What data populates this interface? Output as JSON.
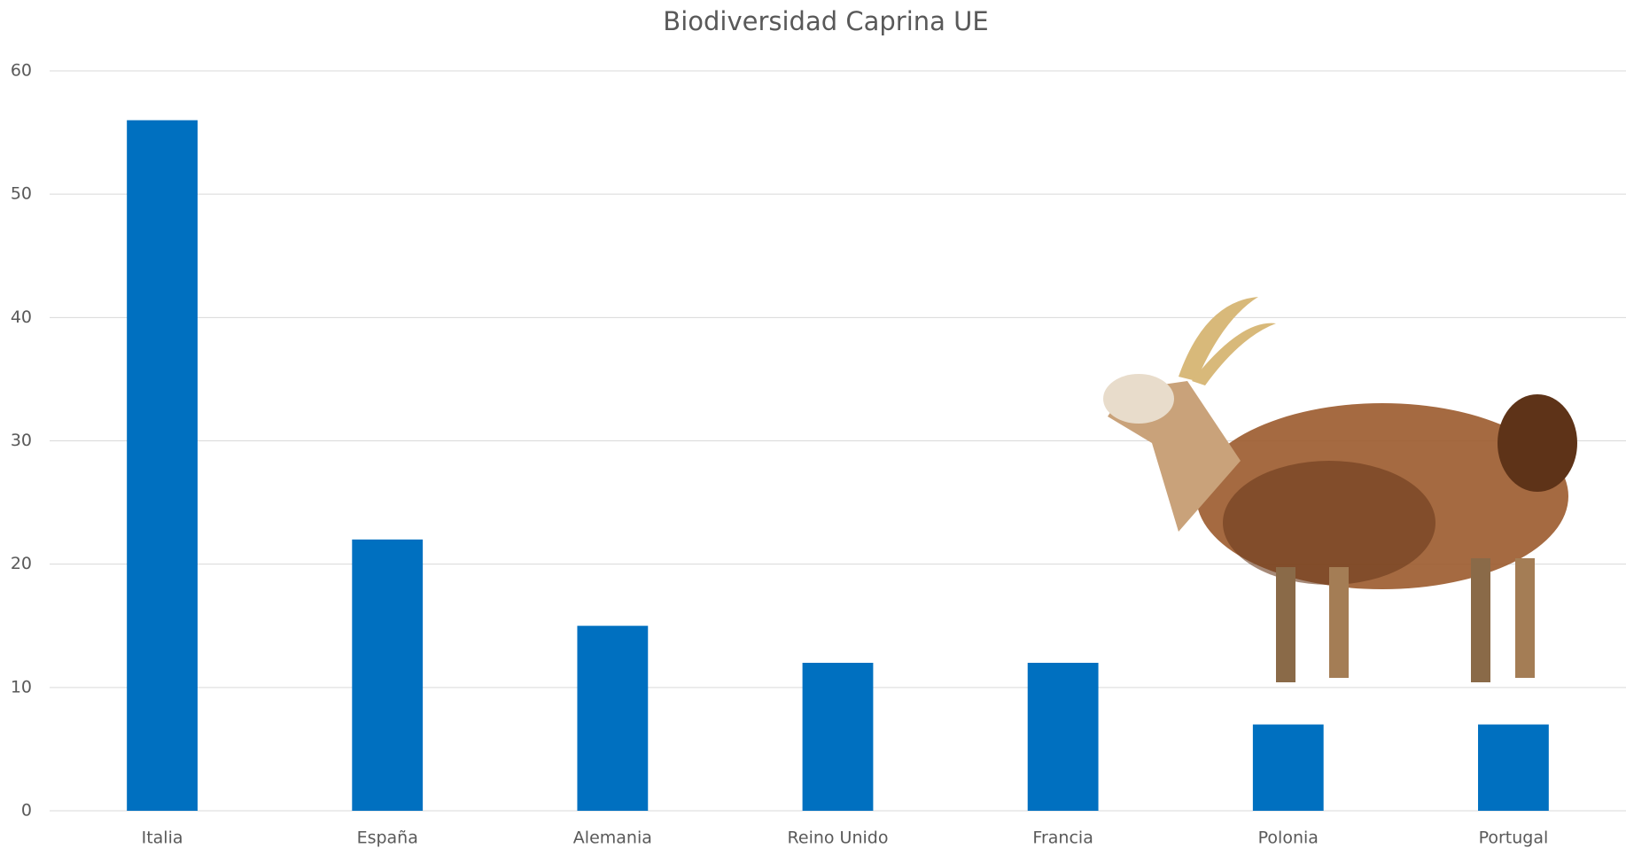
{
  "chart_data": {
    "type": "bar",
    "title": "Biodiversidad Caprina UE",
    "categories": [
      "Italia",
      "España",
      "Alemania",
      "Reino Unido",
      "Francia",
      "Polonia",
      "Portugal"
    ],
    "values": [
      56,
      22,
      15,
      12,
      12,
      7,
      7
    ],
    "color": "#0070c0",
    "ylim": [
      0,
      60
    ],
    "yticks": [
      0,
      10,
      20,
      30,
      40,
      50,
      60
    ],
    "grid": true
  }
}
